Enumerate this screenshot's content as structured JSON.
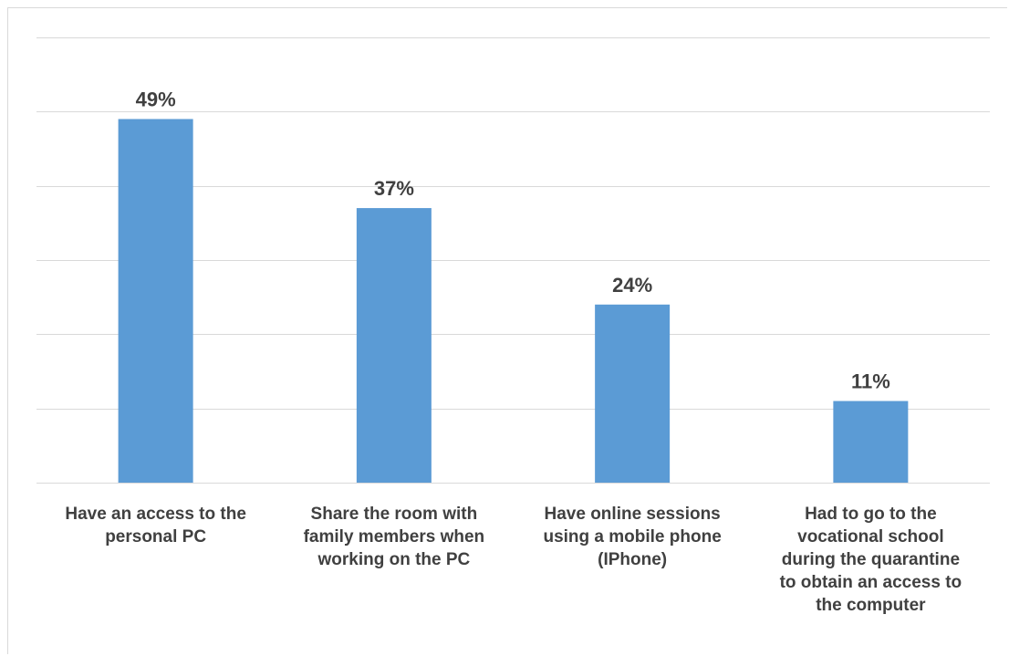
{
  "chart_data": {
    "type": "bar",
    "categories": [
      [
        "Have an access to the",
        "personal PC"
      ],
      [
        "Share the room with",
        "family members when",
        "working on the PC"
      ],
      [
        "Have online sessions",
        "using a mobile phone",
        "(IPhone)"
      ],
      [
        "Had to go to the",
        "vocational school",
        "during the quarantine",
        "to obtain an access to",
        "the computer"
      ]
    ],
    "values": [
      49,
      37,
      24,
      11
    ],
    "data_labels": [
      "49%",
      "37%",
      "24%",
      "11%"
    ],
    "ylim": [
      0,
      60
    ],
    "y_ticks": [
      0,
      10,
      20,
      30,
      40,
      50,
      60
    ],
    "grid": true,
    "legend": "none",
    "bar_color": "#5b9bd5",
    "grid_color": "#d9d9d9",
    "label_color": "#404040"
  }
}
